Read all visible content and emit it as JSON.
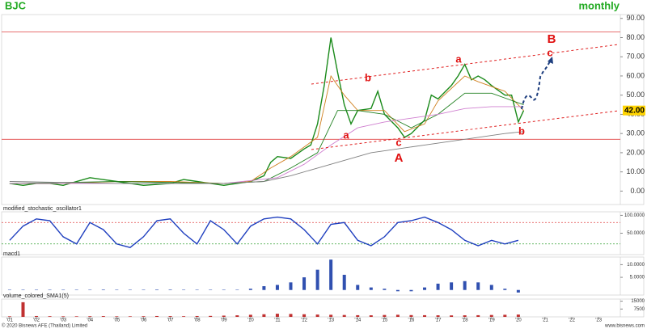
{
  "title": "BJC",
  "subtitle": "monthly",
  "footer": {
    "left": "© 2020 Bisnews AFE (Thailand) Limited",
    "right": "www.bisnews.com"
  },
  "annotations": [
    "b",
    "a",
    "c",
    "A",
    "a",
    "b",
    "B",
    "c"
  ],
  "chart_data": [
    {
      "type": "line",
      "xlim": [
        2000.7,
        2023.81
      ],
      "ylim": [
        -7,
        92
      ],
      "xticks": [
        {
          "value": 2001,
          "label": "'01"
        },
        {
          "value": 2002,
          "label": "'02"
        },
        {
          "value": 2003,
          "label": "'03"
        },
        {
          "value": 2004,
          "label": "'04"
        },
        {
          "value": 2005,
          "label": "'05"
        },
        {
          "value": 2006,
          "label": "'06"
        },
        {
          "value": 2007,
          "label": "'07"
        },
        {
          "value": 2008,
          "label": "'08"
        },
        {
          "value": 2009,
          "label": "'09"
        },
        {
          "value": 2010,
          "label": "'10"
        },
        {
          "value": 2011,
          "label": "'11"
        },
        {
          "value": 2012,
          "label": "'12"
        },
        {
          "value": 2013,
          "label": "'13"
        },
        {
          "value": 2014,
          "label": "'14"
        },
        {
          "value": 2015,
          "label": "'15"
        },
        {
          "value": 2016,
          "label": "'16"
        },
        {
          "value": 2017,
          "label": "'17"
        },
        {
          "value": 2018,
          "label": "'18"
        },
        {
          "value": 2019,
          "label": "'19"
        },
        {
          "value": 2020,
          "label": "'20"
        },
        {
          "value": 2021,
          "label": "'21"
        },
        {
          "value": 2022,
          "label": "'22"
        },
        {
          "value": 2023,
          "label": "'23"
        }
      ],
      "yticks": [
        {
          "value": 0,
          "label": "0.00"
        },
        {
          "value": 10,
          "label": "10.00"
        },
        {
          "value": 20,
          "label": "20.00"
        },
        {
          "value": 30,
          "label": "30.00"
        },
        {
          "value": 40,
          "label": "40.00"
        },
        {
          "value": 50,
          "label": "50.00"
        },
        {
          "value": 60,
          "label": "60.00"
        },
        {
          "value": 70,
          "label": "70.00"
        },
        {
          "value": 80,
          "label": "80.00"
        },
        {
          "value": 90,
          "label": "90.00"
        }
      ],
      "hlines": [
        83,
        27
      ],
      "hline_color": "#e04040",
      "last": {
        "value": 42,
        "label": "42.00"
      },
      "series": [
        {
          "color": "#1a8a1a",
          "x": [
            2001,
            2001.5,
            2002,
            2002.5,
            2003,
            2004,
            2005,
            2006,
            2007,
            2007.5,
            2008,
            2008.5,
            2009,
            2010,
            2010.5,
            2010.75,
            2011,
            2011.5,
            2012,
            2012.25,
            2012.5,
            2012.75,
            2013,
            2013.25,
            2013.5,
            2013.75,
            2014,
            2014.5,
            2014.75,
            2015,
            2015.5,
            2015.75,
            2016,
            2016.5,
            2016.75,
            2017,
            2017.5,
            2017.75,
            2018,
            2018.25,
            2018.5,
            2018.75,
            2019,
            2019.5,
            2019.75,
            2020,
            2020.2
          ],
          "values": [
            4,
            3,
            4,
            4,
            3,
            7,
            5,
            3,
            4,
            6,
            5,
            4,
            3,
            5,
            8,
            15,
            18,
            17,
            22,
            24,
            35,
            55,
            80,
            62,
            45,
            35,
            42,
            43,
            52,
            40,
            33,
            28,
            30,
            37,
            50,
            48,
            55,
            60,
            66,
            58,
            60,
            58,
            55,
            50,
            50,
            36,
            42
          ]
        },
        {
          "color": "#d08020",
          "x": [
            2001,
            2003,
            2005,
            2007,
            2009,
            2010,
            2010.75,
            2011.5,
            2012.5,
            2013,
            2013.5,
            2014,
            2015,
            2015.75,
            2016.5,
            2017,
            2018,
            2018.5,
            2019.5,
            2020.2
          ],
          "values": [
            4,
            4,
            5,
            5,
            4,
            5,
            12,
            18,
            28,
            60,
            50,
            42,
            42,
            31,
            35,
            47,
            60,
            57,
            52,
            42
          ]
        },
        {
          "color": "#208020",
          "x": [
            2001,
            2005,
            2009,
            2010.5,
            2011.5,
            2012.5,
            2013.25,
            2014,
            2015,
            2016,
            2017,
            2018,
            2019,
            2020.2
          ],
          "values": [
            4,
            5,
            4,
            5,
            12,
            20,
            42,
            42,
            40,
            33,
            40,
            51,
            51,
            45
          ]
        },
        {
          "color": "#d080d0",
          "x": [
            2001,
            2005,
            2009,
            2011,
            2012,
            2013,
            2014,
            2015,
            2016,
            2017,
            2018,
            2019,
            2020.2
          ],
          "values": [
            4,
            4,
            4,
            7,
            14,
            24,
            33,
            36,
            38,
            40,
            43,
            44,
            44
          ]
        },
        {
          "color": "#808080",
          "x": [
            2001,
            2005,
            2009,
            2010.5,
            2011.5,
            2012.5,
            2013.5,
            2014.5,
            2015.5,
            2016.5,
            2017.5,
            2018.5,
            2019.5,
            2020.2
          ],
          "values": [
            5,
            4,
            4,
            5,
            8,
            12,
            16,
            20,
            22,
            24,
            26,
            28,
            30,
            31
          ]
        }
      ]
    },
    {
      "type": "line",
      "title": "modified_stochastic_oscillator1",
      "xlim": [
        2000.7,
        2023.81
      ],
      "ylim": [
        -10,
        110
      ],
      "yticks": [
        {
          "value": 50,
          "label": "50.0000"
        },
        {
          "value": 100,
          "label": "100.0000"
        }
      ],
      "hlines": [
        80,
        20
      ],
      "hline_colors": [
        "#e04040",
        "#30a030"
      ],
      "series": [
        {
          "color": "#1f3fbf",
          "x": [
            2001,
            2001.5,
            2002,
            2002.5,
            2003,
            2003.5,
            2004,
            2004.5,
            2005,
            2005.5,
            2006,
            2006.5,
            2007,
            2007.5,
            2008,
            2008.5,
            2009,
            2009.5,
            2010,
            2010.5,
            2011,
            2011.5,
            2012,
            2012.5,
            2013,
            2013.5,
            2014,
            2014.5,
            2015,
            2015.5,
            2016,
            2016.5,
            2017,
            2017.5,
            2018,
            2018.5,
            2019,
            2019.5,
            2020
          ],
          "values": [
            30,
            70,
            90,
            85,
            40,
            20,
            80,
            60,
            20,
            10,
            40,
            85,
            90,
            50,
            20,
            85,
            60,
            20,
            70,
            90,
            95,
            90,
            60,
            20,
            75,
            80,
            30,
            15,
            40,
            80,
            85,
            95,
            80,
            60,
            30,
            15,
            30,
            20,
            30
          ]
        }
      ]
    },
    {
      "type": "bar",
      "title": "macd1",
      "xlim": [
        2000.7,
        2023.81
      ],
      "ylim": [
        -2,
        13
      ],
      "color": "#3050b0",
      "yticks": [
        {
          "value": 5,
          "label": "5.0000"
        },
        {
          "value": 10,
          "label": "10.0000"
        }
      ],
      "x": [
        2001,
        2001.5,
        2002,
        2002.5,
        2003,
        2003.5,
        2004,
        2004.5,
        2005,
        2005.5,
        2006,
        2006.5,
        2007,
        2007.5,
        2008,
        2008.5,
        2009,
        2009.5,
        2010,
        2010.5,
        2011,
        2011.5,
        2012,
        2012.5,
        2013,
        2013.5,
        2014,
        2014.5,
        2015,
        2015.5,
        2016,
        2016.5,
        2017,
        2017.5,
        2018,
        2018.5,
        2019,
        2019.5,
        2020
      ],
      "values": [
        0.1,
        0.1,
        0.1,
        0.1,
        0.1,
        0.1,
        0.1,
        0.2,
        0.1,
        0.1,
        0.1,
        0.2,
        0.2,
        0.1,
        0.1,
        0.1,
        0.1,
        0.1,
        0.5,
        1.5,
        2,
        3,
        5,
        8,
        12,
        6,
        2,
        1,
        0.5,
        -0.5,
        -0.5,
        1,
        2.5,
        3,
        3.5,
        3,
        2,
        0.5,
        -1
      ]
    },
    {
      "type": "bar",
      "title": "volume_colored_SMA1(5)",
      "xlim": [
        2000.7,
        2023.81
      ],
      "ylim": [
        0,
        17000
      ],
      "color": "#c03030",
      "yticks": [
        7500,
        15000
      ],
      "x": [
        2001,
        2001.5,
        2002,
        2002.5,
        2003,
        2003.5,
        2004,
        2004.5,
        2005,
        2005.5,
        2006,
        2006.5,
        2007,
        2007.5,
        2008,
        2008.5,
        2009,
        2009.5,
        2010,
        2010.5,
        2011,
        2011.5,
        2012,
        2012.5,
        2013,
        2013.5,
        2014,
        2014.5,
        2015,
        2015.5,
        2016,
        2016.5,
        2017,
        2017.5,
        2018,
        2018.5,
        2019,
        2019.5,
        2020
      ],
      "values": [
        500,
        14000,
        800,
        600,
        500,
        500,
        600,
        700,
        500,
        500,
        600,
        800,
        700,
        600,
        800,
        900,
        1200,
        1500,
        2000,
        2500,
        3000,
        2800,
        2500,
        2200,
        2000,
        1800,
        1600,
        1500,
        1800,
        2000,
        1700,
        1600,
        1500,
        1400,
        1500,
        1600,
        1800,
        2000,
        2200
      ]
    }
  ]
}
